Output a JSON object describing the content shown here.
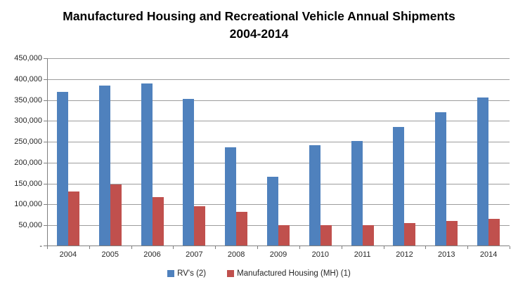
{
  "title": "Manufactured Housing and Recreational Vehicle Annual Shipments 2004-2014",
  "chart_data": {
    "type": "bar",
    "title": "Manufactured Housing and Recreational Vehicle Annual Shipments 2004-2014",
    "categories": [
      "2004",
      "2005",
      "2006",
      "2007",
      "2008",
      "2009",
      "2010",
      "2011",
      "2012",
      "2013",
      "2014"
    ],
    "series": [
      {
        "name": "RV's (2)",
        "color": "#4F81BD",
        "values": [
          370000,
          385000,
          390000,
          353000,
          237000,
          166000,
          242000,
          252000,
          286000,
          321000,
          356000
        ]
      },
      {
        "name": "Manufactured Housing (MH) (1)",
        "color": "#C0504D",
        "values": [
          131000,
          147000,
          117000,
          96000,
          82000,
          50000,
          50000,
          51000,
          55000,
          60000,
          65000
        ]
      }
    ],
    "xlabel": "",
    "ylabel": "",
    "ylim": [
      0,
      450000
    ],
    "ytick_step": 50000,
    "ytick_labels": [
      "-",
      "50,000",
      "100,000",
      "150,000",
      "200,000",
      "250,000",
      "300,000",
      "350,000",
      "400,000",
      "450,000"
    ],
    "grid": true,
    "legend_position": "bottom"
  }
}
